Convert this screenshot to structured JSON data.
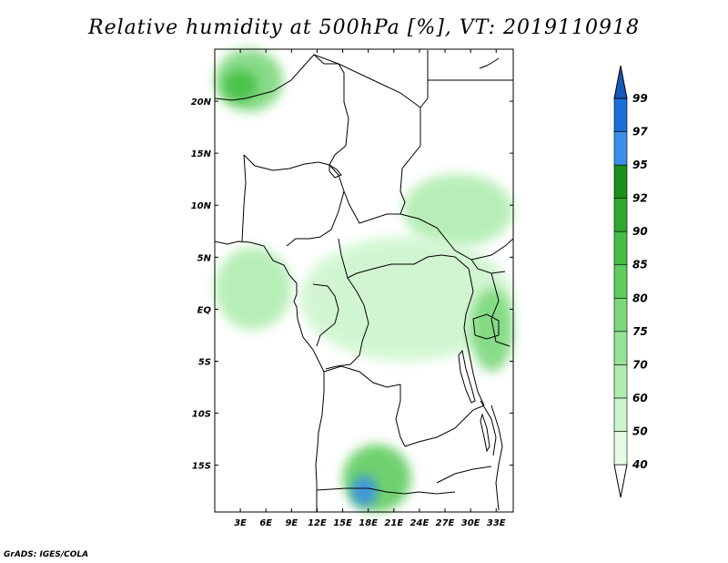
{
  "title": "Relative humidity at 500hPa [%], VT: 2019110918",
  "credit": "GrADS: IGES/COLA",
  "map": {
    "lat_ticks": [
      "20N",
      "15N",
      "10N",
      "5N",
      "EQ",
      "5S",
      "10S",
      "15S"
    ],
    "lon_ticks": [
      "3E",
      "6E",
      "9E",
      "12E",
      "15E",
      "18E",
      "21E",
      "24E",
      "27E",
      "30E",
      "33E"
    ],
    "lon_range": [
      0,
      35
    ],
    "lat_range": [
      -19.5,
      25
    ]
  },
  "colorbar": {
    "levels": [
      "40",
      "50",
      "60",
      "70",
      "75",
      "80",
      "85",
      "90",
      "92",
      "95",
      "97",
      "99"
    ],
    "colors": [
      "#ffffff",
      "#e6fbe6",
      "#cdf5cd",
      "#b0edb0",
      "#96e396",
      "#7bd87b",
      "#5fcc5f",
      "#45bf45",
      "#2ea82e",
      "#1a901a",
      "#3b8fe8",
      "#1a6fd8",
      "#1659b8"
    ]
  },
  "chart_data": {
    "type": "heatmap",
    "title": "Relative humidity at 500hPa [%], VT: 2019110918",
    "variable": "Relative humidity",
    "units": "%",
    "level": "500hPa",
    "valid_time": "2019110918",
    "contour_levels": [
      40,
      50,
      60,
      70,
      75,
      80,
      85,
      90,
      92,
      95,
      97,
      99
    ],
    "lon_range": [
      0,
      35
    ],
    "lat_range": [
      -19.5,
      25
    ],
    "x_tick_labels": [
      "3E",
      "6E",
      "9E",
      "12E",
      "15E",
      "18E",
      "21E",
      "24E",
      "27E",
      "30E",
      "33E"
    ],
    "y_tick_labels": [
      "20N",
      "15N",
      "10N",
      "5N",
      "EQ",
      "5S",
      "10S",
      "15S"
    ],
    "regions": [
      {
        "lon": [
          0,
          8
        ],
        "lat": [
          19,
          25
        ],
        "rh": 75
      },
      {
        "lon": [
          1,
          5
        ],
        "lat": [
          20,
          23
        ],
        "rh": 88
      },
      {
        "lon": [
          22,
          35
        ],
        "lat": [
          6,
          13
        ],
        "rh": 60
      },
      {
        "lon": [
          10,
          35
        ],
        "lat": [
          -5,
          7
        ],
        "rh": 55
      },
      {
        "lon": [
          0,
          9
        ],
        "lat": [
          -2,
          6
        ],
        "rh": 60
      },
      {
        "lon": [
          15,
          23
        ],
        "lat": [
          -19.5,
          -13
        ],
        "rh": 80
      },
      {
        "lon": [
          16,
          19
        ],
        "lat": [
          -19,
          -16
        ],
        "rh": 96
      },
      {
        "lon": [
          30,
          35
        ],
        "lat": [
          -6,
          2
        ],
        "rh": 75
      }
    ]
  }
}
